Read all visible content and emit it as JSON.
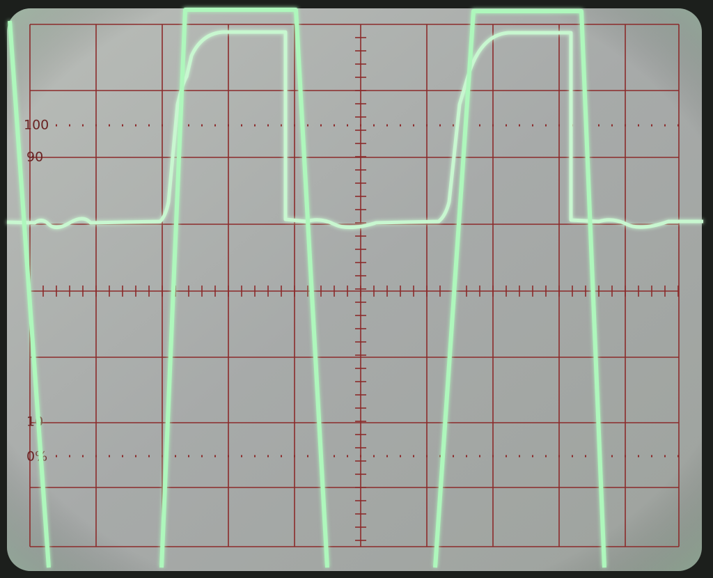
{
  "graticule": {
    "labels": [
      "100",
      "90",
      "10",
      "0%"
    ]
  }
}
